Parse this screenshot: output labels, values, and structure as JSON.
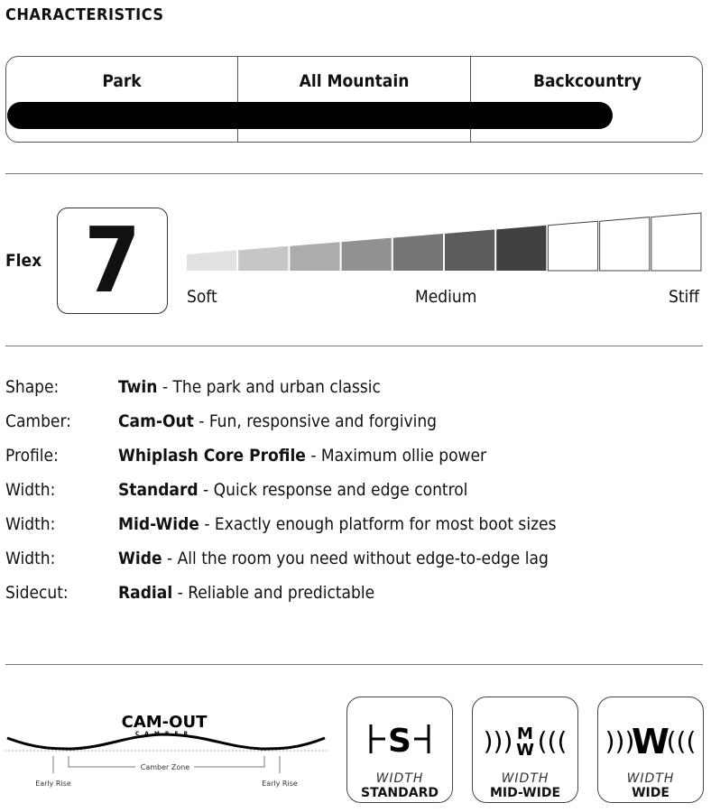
{
  "title": "CHARACTERISTICS",
  "terrain": {
    "options": [
      "Park",
      "All Mountain",
      "Backcountry"
    ],
    "bar_fill_percent": 87
  },
  "flex": {
    "label": "Flex",
    "value": "7",
    "rating": 7,
    "max": 10,
    "scale": [
      "Soft",
      "Medium",
      "Stiff"
    ]
  },
  "specs": [
    {
      "key": "Shape:",
      "name": "Twin",
      "desc": " - The park and urban classic"
    },
    {
      "key": "Camber:",
      "name": "Cam-Out",
      "desc": " - Fun, responsive and forgiving"
    },
    {
      "key": "Profile:",
      "name": "Whiplash Core Profile",
      "desc": " - Maximum ollie power"
    },
    {
      "key": "Width:",
      "name": "Standard",
      "desc": " - Quick response and edge control"
    },
    {
      "key": "Width:",
      "name": "Mid-Wide",
      "desc": " - Exactly enough platform for most boot sizes"
    },
    {
      "key": "Width:",
      "name": "Wide",
      "desc": " - All the room you need without edge-to-edge lag"
    },
    {
      "key": "Sidecut:",
      "name": "Radial",
      "desc": " - Reliable and predictable"
    }
  ],
  "camber": {
    "logo": "CAM-OUT",
    "logo_sub": "CAMBER",
    "zone": "Camber Zone",
    "left": "Early Rise",
    "right": "Early Rise"
  },
  "width_icons": [
    {
      "top": "WIDTH",
      "bottom": "STANDARD",
      "icon": "width-standard-icon"
    },
    {
      "top": "WIDTH",
      "bottom": "MID-WIDE",
      "icon": "width-mid-wide-icon"
    },
    {
      "top": "WIDTH",
      "bottom": "WIDE",
      "icon": "width-wide-icon"
    }
  ]
}
